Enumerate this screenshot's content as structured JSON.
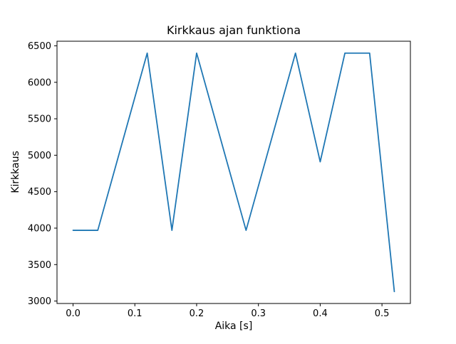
{
  "chart_data": {
    "type": "line",
    "title": "Kirkkaus ajan funktiona",
    "xlabel": "Aika [s]",
    "ylabel": "Kirkkaus",
    "x": [
      0.0,
      0.04,
      0.12,
      0.16,
      0.2,
      0.28,
      0.36,
      0.4,
      0.44,
      0.48,
      0.52
    ],
    "y": [
      3970,
      3970,
      6400,
      3970,
      6400,
      3970,
      6400,
      4910,
      6400,
      6400,
      3130
    ],
    "xlim": [
      -0.026,
      0.546
    ],
    "ylim": [
      2966.5,
      6563.5
    ],
    "xticks": [
      0.0,
      0.1,
      0.2,
      0.3,
      0.4,
      0.5
    ],
    "xtick_labels": [
      "0.0",
      "0.1",
      "0.2",
      "0.3",
      "0.4",
      "0.5"
    ],
    "yticks": [
      3000,
      3500,
      4000,
      4500,
      5000,
      5500,
      6000,
      6500
    ],
    "ytick_labels": [
      "3000",
      "3500",
      "4000",
      "4500",
      "5000",
      "5500",
      "6000",
      "6500"
    ],
    "line_color": "#1f77b4",
    "axis_color": "#000000",
    "background_color": "#ffffff",
    "grid": false,
    "legend": "none"
  }
}
